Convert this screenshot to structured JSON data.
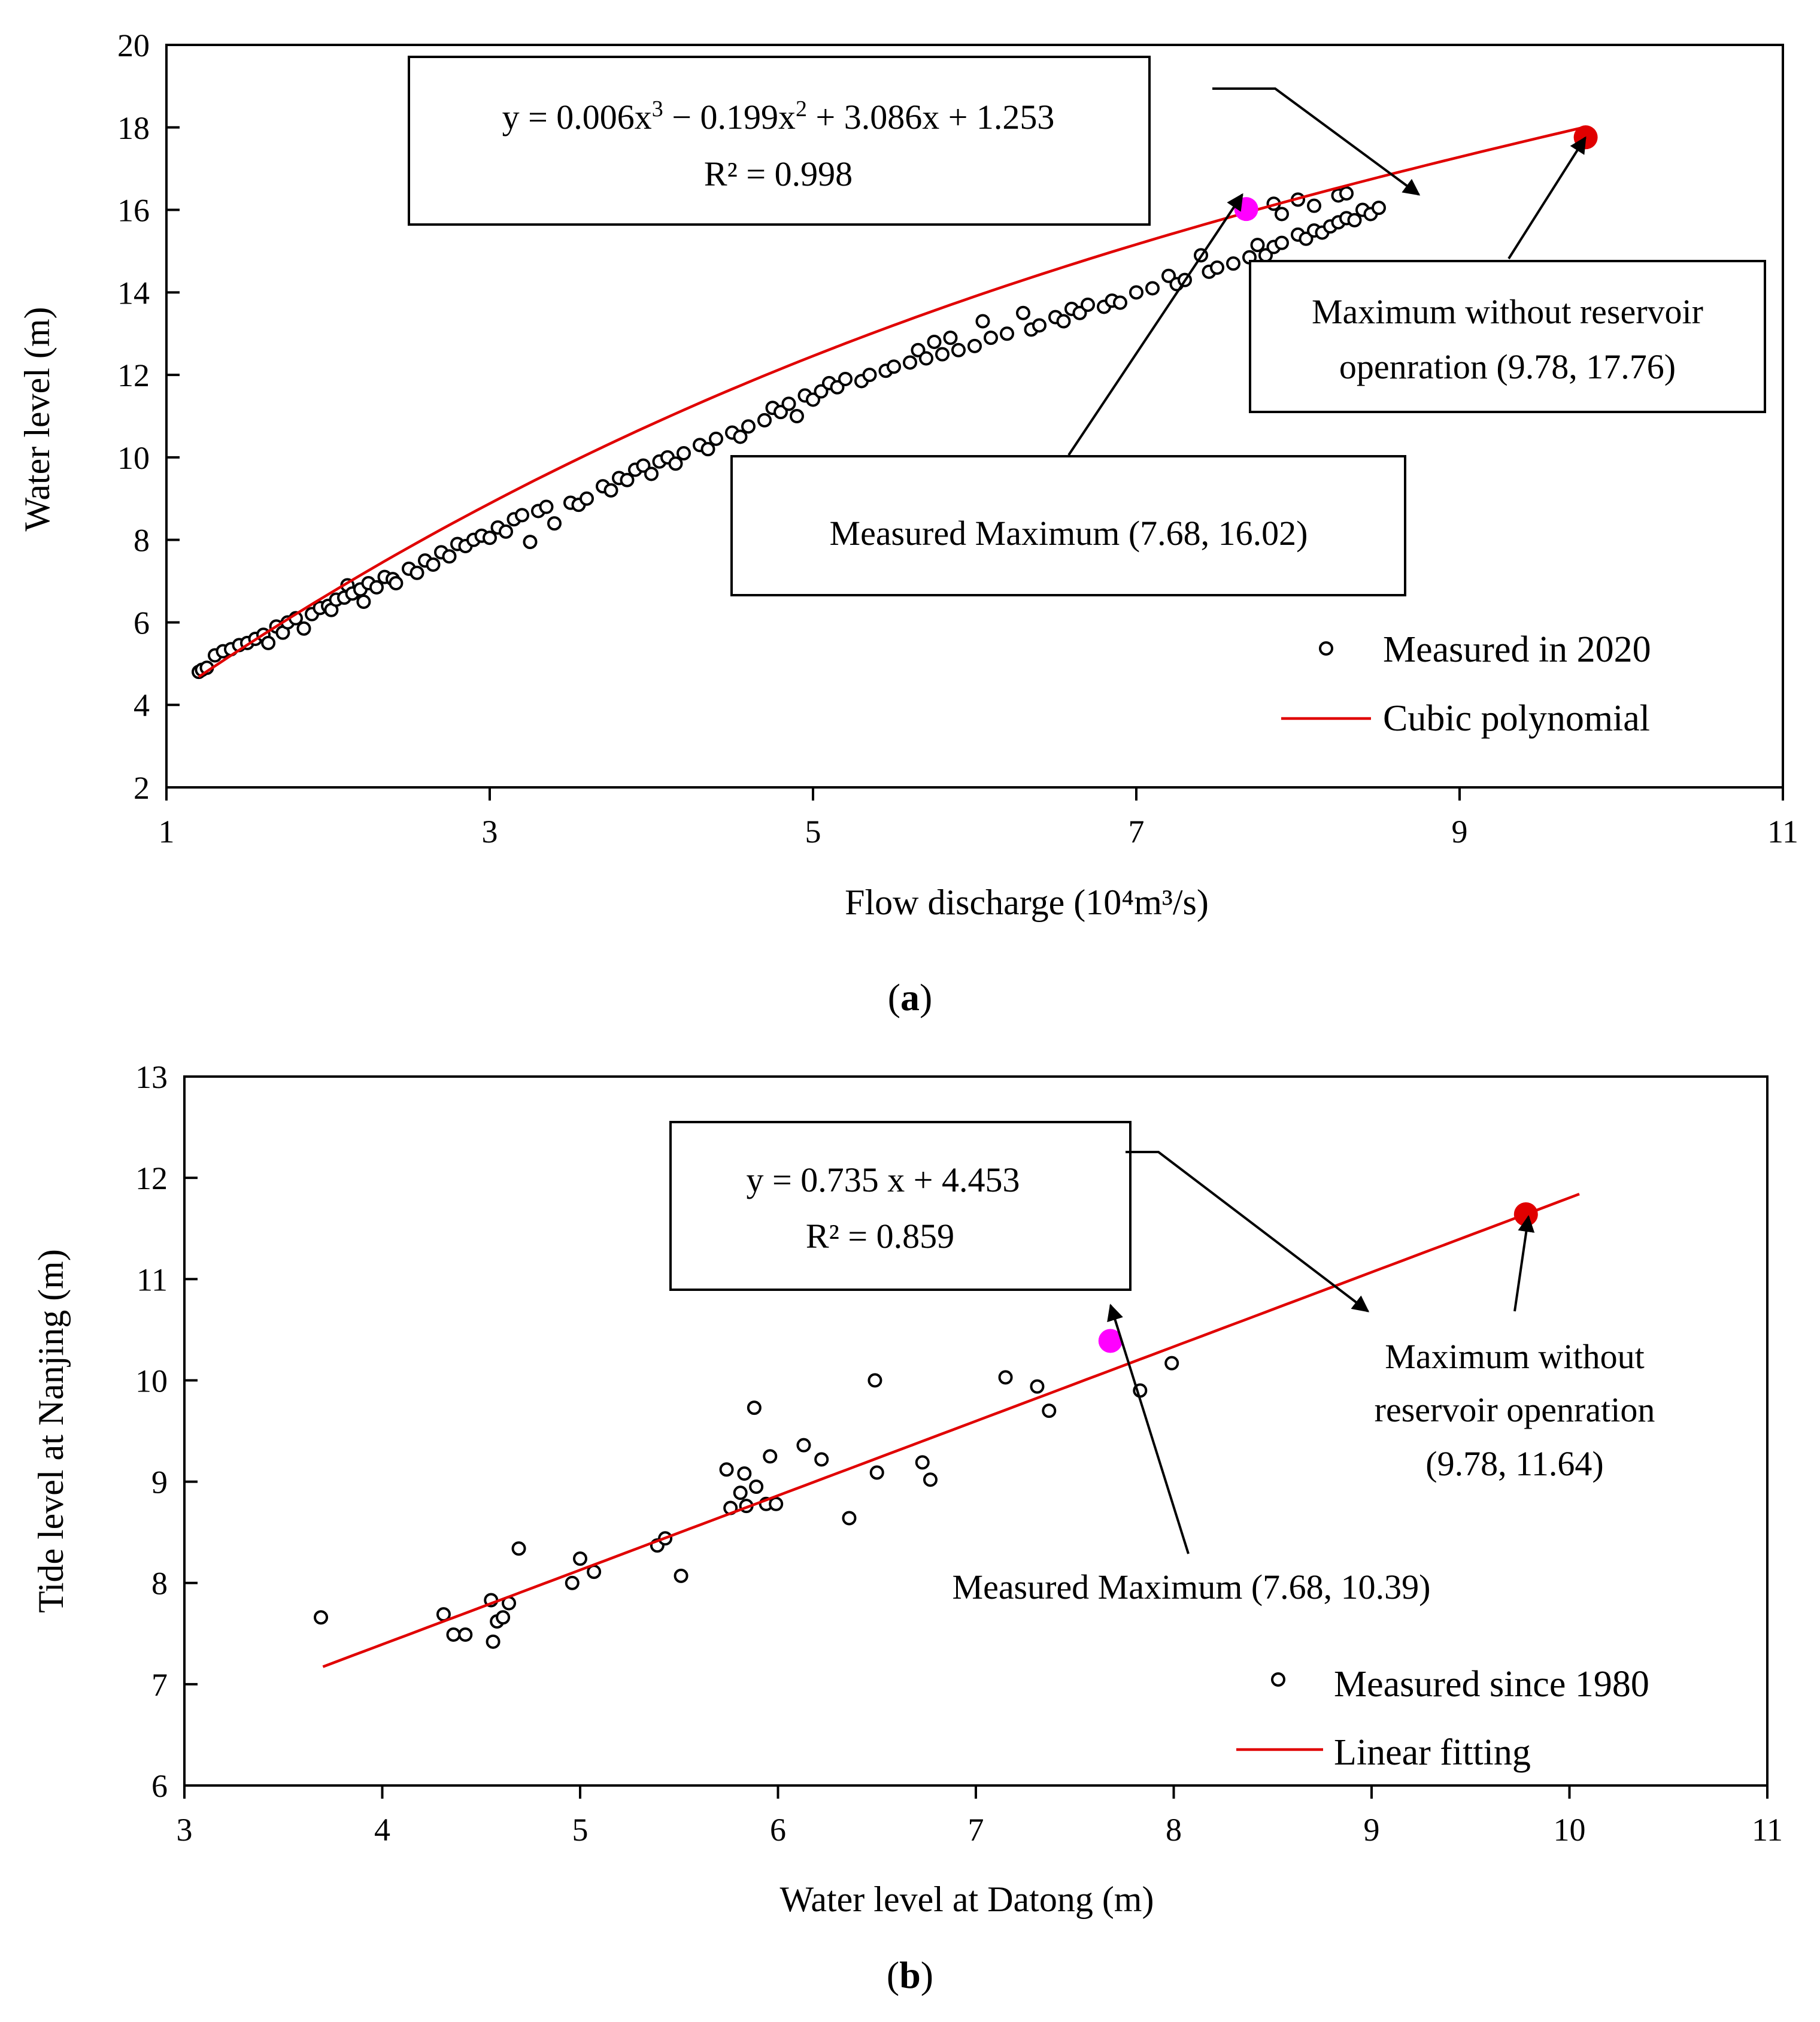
{
  "chart_data": [
    {
      "type": "scatter",
      "panel": "a",
      "panel_label": "(a)",
      "xlabel": "Flow discharge (10⁴m³/s)",
      "ylabel": "Water level (m)",
      "xlim": [
        1,
        11
      ],
      "ylim": [
        2,
        20
      ],
      "xticks": [
        1,
        3,
        5,
        7,
        9,
        11
      ],
      "yticks": [
        2,
        4,
        6,
        8,
        10,
        12,
        14,
        16,
        18,
        20
      ],
      "equation": "y = 0.006x³ − 0.199x² + 3.086x + 1.253",
      "r2": "R² = 0.998",
      "fit": {
        "type": "cubic",
        "coef": [
          0.006,
          -0.199,
          3.086,
          1.253
        ],
        "x_range": [
          1.2,
          9.78
        ]
      },
      "measured_max": {
        "x": 7.68,
        "y": 16.02,
        "label": "Measured Maximum (7.68, 16.02)",
        "color": "#ff00ff"
      },
      "max_without": {
        "x": 9.78,
        "y": 17.76,
        "label_lines": [
          "Maximum without reservoir",
          "openration  (9.78, 17.76)"
        ],
        "color": "#e00000"
      },
      "legend": [
        {
          "kind": "marker",
          "label": "Measured in 2020"
        },
        {
          "kind": "line",
          "label": "Cubic polynomial"
        }
      ],
      "scatter": [
        [
          1.2,
          4.8
        ],
        [
          1.22,
          4.85
        ],
        [
          1.25,
          4.9
        ],
        [
          1.3,
          5.2
        ],
        [
          1.35,
          5.3
        ],
        [
          1.4,
          5.35
        ],
        [
          1.45,
          5.45
        ],
        [
          1.5,
          5.5
        ],
        [
          1.55,
          5.6
        ],
        [
          1.6,
          5.7
        ],
        [
          1.63,
          5.5
        ],
        [
          1.68,
          5.9
        ],
        [
          1.72,
          5.75
        ],
        [
          1.75,
          6.0
        ],
        [
          1.8,
          6.1
        ],
        [
          1.85,
          5.85
        ],
        [
          1.9,
          6.2
        ],
        [
          1.95,
          6.35
        ],
        [
          2.0,
          6.4
        ],
        [
          2.02,
          6.3
        ],
        [
          2.05,
          6.55
        ],
        [
          2.1,
          6.6
        ],
        [
          2.12,
          6.9
        ],
        [
          2.15,
          6.7
        ],
        [
          2.2,
          6.8
        ],
        [
          2.22,
          6.5
        ],
        [
          2.25,
          6.95
        ],
        [
          2.3,
          6.85
        ],
        [
          2.35,
          7.1
        ],
        [
          2.4,
          7.05
        ],
        [
          2.42,
          6.95
        ],
        [
          2.5,
          7.3
        ],
        [
          2.55,
          7.2
        ],
        [
          2.6,
          7.5
        ],
        [
          2.65,
          7.4
        ],
        [
          2.7,
          7.7
        ],
        [
          2.75,
          7.6
        ],
        [
          2.8,
          7.9
        ],
        [
          2.85,
          7.85
        ],
        [
          2.9,
          8.0
        ],
        [
          2.95,
          8.1
        ],
        [
          3.0,
          8.05
        ],
        [
          3.05,
          8.3
        ],
        [
          3.1,
          8.2
        ],
        [
          3.15,
          8.5
        ],
        [
          3.2,
          8.6
        ],
        [
          3.25,
          7.95
        ],
        [
          3.3,
          8.7
        ],
        [
          3.35,
          8.8
        ],
        [
          3.4,
          8.4
        ],
        [
          3.5,
          8.9
        ],
        [
          3.55,
          8.85
        ],
        [
          3.6,
          9.0
        ],
        [
          3.7,
          9.3
        ],
        [
          3.75,
          9.2
        ],
        [
          3.8,
          9.5
        ],
        [
          3.85,
          9.45
        ],
        [
          3.9,
          9.7
        ],
        [
          3.95,
          9.8
        ],
        [
          4.0,
          9.6
        ],
        [
          4.05,
          9.9
        ],
        [
          4.1,
          10.0
        ],
        [
          4.15,
          9.85
        ],
        [
          4.2,
          10.1
        ],
        [
          4.3,
          10.3
        ],
        [
          4.35,
          10.2
        ],
        [
          4.4,
          10.45
        ],
        [
          4.5,
          10.6
        ],
        [
          4.55,
          10.5
        ],
        [
          4.6,
          10.75
        ],
        [
          4.7,
          10.9
        ],
        [
          4.75,
          11.2
        ],
        [
          4.8,
          11.1
        ],
        [
          4.85,
          11.3
        ],
        [
          4.9,
          11.0
        ],
        [
          4.95,
          11.5
        ],
        [
          5.0,
          11.4
        ],
        [
          5.05,
          11.6
        ],
        [
          5.1,
          11.8
        ],
        [
          5.15,
          11.7
        ],
        [
          5.2,
          11.9
        ],
        [
          5.3,
          11.85
        ],
        [
          5.35,
          12.0
        ],
        [
          5.45,
          12.1
        ],
        [
          5.5,
          12.2
        ],
        [
          5.6,
          12.3
        ],
        [
          5.65,
          12.6
        ],
        [
          5.7,
          12.4
        ],
        [
          5.75,
          12.8
        ],
        [
          5.8,
          12.5
        ],
        [
          5.85,
          12.9
        ],
        [
          5.9,
          12.6
        ],
        [
          6.0,
          12.7
        ],
        [
          6.05,
          13.3
        ],
        [
          6.1,
          12.9
        ],
        [
          6.2,
          13.0
        ],
        [
          6.3,
          13.5
        ],
        [
          6.35,
          13.1
        ],
        [
          6.4,
          13.2
        ],
        [
          6.5,
          13.4
        ],
        [
          6.55,
          13.3
        ],
        [
          6.6,
          13.6
        ],
        [
          6.65,
          13.5
        ],
        [
          6.7,
          13.7
        ],
        [
          6.8,
          13.65
        ],
        [
          6.85,
          13.8
        ],
        [
          6.9,
          13.75
        ],
        [
          7.0,
          14.0
        ],
        [
          7.1,
          14.1
        ],
        [
          7.2,
          14.4
        ],
        [
          7.25,
          14.2
        ],
        [
          7.3,
          14.3
        ],
        [
          7.4,
          14.9
        ],
        [
          7.45,
          14.5
        ],
        [
          7.5,
          14.6
        ],
        [
          7.6,
          14.7
        ],
        [
          7.7,
          14.85
        ],
        [
          7.75,
          15.15
        ],
        [
          7.8,
          14.9
        ],
        [
          7.85,
          15.1
        ],
        [
          7.9,
          15.2
        ],
        [
          8.0,
          15.4
        ],
        [
          8.05,
          15.3
        ],
        [
          8.1,
          15.5
        ],
        [
          8.15,
          15.45
        ],
        [
          8.2,
          15.6
        ],
        [
          8.25,
          15.7
        ],
        [
          8.3,
          15.8
        ],
        [
          8.35,
          15.75
        ],
        [
          8.4,
          16.0
        ],
        [
          8.45,
          15.9
        ],
        [
          8.5,
          16.05
        ],
        [
          7.85,
          16.15
        ],
        [
          7.9,
          15.9
        ],
        [
          8.0,
          16.25
        ],
        [
          8.1,
          16.1
        ],
        [
          8.25,
          16.35
        ],
        [
          8.3,
          16.4
        ]
      ]
    },
    {
      "type": "scatter",
      "panel": "b",
      "panel_label": "(b)",
      "xlabel": "Water level at Datong (m)",
      "ylabel": "Tide level at Nanjing (m)",
      "xlim": [
        3,
        11
      ],
      "ylim": [
        6,
        13
      ],
      "xticks": [
        3,
        4,
        5,
        6,
        7,
        8,
        9,
        10,
        11
      ],
      "yticks": [
        6,
        7,
        8,
        9,
        10,
        11,
        12,
        13
      ],
      "equation": "y = 0.735 x + 4.453",
      "r2": "R² = 0.859",
      "fit": {
        "type": "linear",
        "coef": [
          0.735,
          4.453
        ],
        "x_range": [
          3.7,
          10.05
        ]
      },
      "measured_max": {
        "x": 7.68,
        "y": 10.39,
        "label": "Measured Maximum (7.68, 10.39)",
        "color": "#ff00ff"
      },
      "max_without": {
        "x": 9.78,
        "y": 11.64,
        "label_lines": [
          "Maximum without",
          "reservoir openration",
          "(9.78, 11.64)"
        ],
        "color": "#e00000"
      },
      "legend": [
        {
          "kind": "marker",
          "label": "Measured since 1980"
        },
        {
          "kind": "line",
          "label": "Linear fitting"
        }
      ],
      "scatter": [
        [
          3.69,
          7.66
        ],
        [
          4.31,
          7.69
        ],
        [
          4.36,
          7.49
        ],
        [
          4.42,
          7.49
        ],
        [
          4.55,
          7.83
        ],
        [
          4.56,
          7.42
        ],
        [
          4.58,
          7.62
        ],
        [
          4.61,
          7.66
        ],
        [
          4.64,
          7.8
        ],
        [
          4.69,
          8.34
        ],
        [
          4.96,
          8.0
        ],
        [
          5.0,
          8.24
        ],
        [
          5.07,
          8.11
        ],
        [
          5.39,
          8.37
        ],
        [
          5.43,
          8.44
        ],
        [
          5.51,
          8.07
        ],
        [
          5.74,
          9.12
        ],
        [
          5.76,
          8.74
        ],
        [
          5.81,
          8.89
        ],
        [
          5.83,
          9.08
        ],
        [
          5.84,
          8.76
        ],
        [
          5.88,
          9.73
        ],
        [
          5.89,
          8.95
        ],
        [
          5.94,
          8.78
        ],
        [
          5.96,
          9.25
        ],
        [
          5.99,
          8.78
        ],
        [
          6.13,
          9.36
        ],
        [
          6.22,
          9.22
        ],
        [
          6.36,
          8.64
        ],
        [
          6.49,
          10.0
        ],
        [
          6.5,
          9.09
        ],
        [
          6.73,
          9.19
        ],
        [
          6.77,
          9.02
        ],
        [
          7.15,
          10.03
        ],
        [
          7.31,
          9.94
        ],
        [
          7.37,
          9.7
        ],
        [
          7.83,
          9.9
        ],
        [
          7.99,
          10.17
        ]
      ]
    }
  ]
}
